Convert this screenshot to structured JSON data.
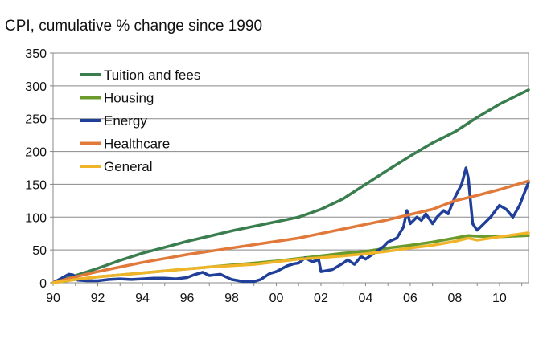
{
  "chart_data": {
    "type": "line",
    "title": "CPI, cumulative % change since 1990",
    "xlabel": "",
    "ylabel": "",
    "xlim": [
      1990,
      2011.3
    ],
    "ylim": [
      0,
      350
    ],
    "yticks": [
      0,
      50,
      100,
      150,
      200,
      250,
      300,
      350
    ],
    "xticks": [
      {
        "value": 1990,
        "label": "90"
      },
      {
        "value": 1992,
        "label": "92"
      },
      {
        "value": 1994,
        "label": "94"
      },
      {
        "value": 1996,
        "label": "96"
      },
      {
        "value": 1998,
        "label": "98"
      },
      {
        "value": 2000,
        "label": "00"
      },
      {
        "value": 2002,
        "label": "02"
      },
      {
        "value": 2004,
        "label": "04"
      },
      {
        "value": 2006,
        "label": "06"
      },
      {
        "value": 2008,
        "label": "08"
      },
      {
        "value": 2010,
        "label": "10"
      }
    ],
    "legend_position": "top-left",
    "series": [
      {
        "name": "Tuition and fees",
        "color": "#3a7d4f",
        "x": [
          1990,
          1991,
          1992,
          1993,
          1994,
          1995,
          1996,
          1997,
          1998,
          1999,
          2000,
          2001,
          2002,
          2003,
          2004,
          2005,
          2006,
          2007,
          2008,
          2009,
          2010,
          2011.3
        ],
        "y": [
          0,
          11,
          22,
          34,
          45,
          54,
          63,
          71,
          79,
          86,
          93,
          100,
          112,
          128,
          150,
          172,
          193,
          213,
          230,
          252,
          272,
          294
        ]
      },
      {
        "name": "Housing",
        "color": "#6a9a2a",
        "x": [
          1990,
          1991,
          1992,
          1993,
          1994,
          1995,
          1996,
          1997,
          1998,
          1999,
          2000,
          2001,
          2002,
          2003,
          2004,
          2005,
          2006,
          2007,
          2008,
          2008.6,
          2009,
          2010,
          2011.3
        ],
        "y": [
          0,
          5,
          9,
          12,
          15,
          18,
          21,
          24,
          27,
          30,
          33,
          37,
          41,
          45,
          48,
          53,
          57,
          62,
          68,
          72,
          71,
          70,
          72
        ]
      },
      {
        "name": "Energy",
        "color": "#1f3f99",
        "x": [
          1990,
          1990.7,
          1990.9,
          1991.1,
          1991.5,
          1992,
          1992.5,
          1993,
          1993.5,
          1994,
          1994.5,
          1995,
          1995.5,
          1996,
          1996.3,
          1996.7,
          1997,
          1997.5,
          1998,
          1998.5,
          1999,
          1999.3,
          1999.7,
          2000,
          2000.5,
          2000.8,
          2001,
          2001.3,
          2001.6,
          2001.9,
          2002,
          2002.5,
          2003,
          2003.2,
          2003.5,
          2003.8,
          2004,
          2004.5,
          2004.8,
          2005,
          2005.4,
          2005.7,
          2005.85,
          2006,
          2006.3,
          2006.5,
          2006.7,
          2007,
          2007.2,
          2007.5,
          2007.7,
          2008,
          2008.3,
          2008.5,
          2008.6,
          2008.8,
          2009,
          2009.3,
          2009.6,
          2010,
          2010.3,
          2010.6,
          2010.9,
          2011.3
        ],
        "y": [
          0,
          13,
          12,
          4,
          3,
          3,
          5,
          6,
          5,
          6,
          7,
          7,
          6,
          8,
          12,
          16,
          11,
          13,
          5,
          2,
          2,
          5,
          14,
          17,
          26,
          29,
          30,
          38,
          32,
          35,
          17,
          20,
          30,
          35,
          28,
          40,
          36,
          48,
          55,
          62,
          68,
          85,
          110,
          90,
          100,
          95,
          105,
          90,
          100,
          110,
          105,
          130,
          150,
          175,
          160,
          90,
          80,
          90,
          100,
          118,
          112,
          100,
          118,
          153
        ]
      },
      {
        "name": "Healthcare",
        "color": "#e0793a",
        "x": [
          1990,
          1991,
          1992,
          1993,
          1994,
          1995,
          1996,
          1997,
          1998,
          1999,
          2000,
          2001,
          2002,
          2003,
          2004,
          2005,
          2006,
          2007,
          2008,
          2009,
          2010,
          2011.3
        ],
        "y": [
          0,
          9,
          17,
          24,
          31,
          37,
          43,
          48,
          53,
          58,
          63,
          68,
          75,
          82,
          89,
          96,
          104,
          112,
          125,
          133,
          142,
          155
        ]
      },
      {
        "name": "General",
        "color": "#f0b429",
        "x": [
          1990,
          1991,
          1992,
          1993,
          1994,
          1995,
          1996,
          1997,
          1998,
          1999,
          2000,
          2001,
          2002,
          2003,
          2004,
          2005,
          2006,
          2007,
          2008,
          2008.6,
          2009,
          2010,
          2011.3
        ],
        "y": [
          0,
          5,
          9,
          12,
          15,
          18,
          21,
          24,
          26,
          28,
          32,
          36,
          38,
          41,
          44,
          48,
          53,
          57,
          63,
          68,
          65,
          70,
          76
        ]
      }
    ]
  }
}
